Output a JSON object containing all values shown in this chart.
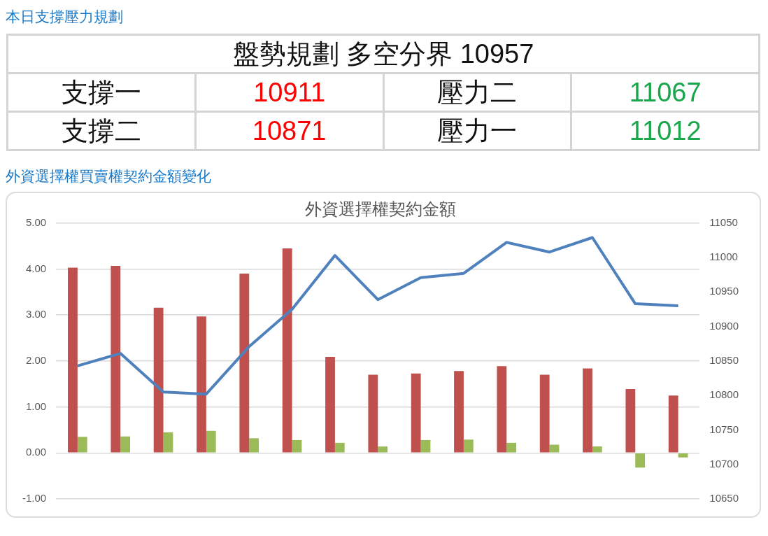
{
  "chart_data": [
    {
      "type": "other",
      "title": "本日支撐壓力規劃",
      "annotations": [
        "盤勢規劃 多空分界 10957",
        "支撐一",
        "10911",
        "壓力二",
        "11067",
        "支撐二",
        "10871",
        "壓力一",
        "11012"
      ]
    },
    {
      "type": "bar",
      "title": "外資選擇權契約金額",
      "subtitle": "外資選擇權買賣權契約金額變化",
      "categories": [
        null,
        null,
        null,
        null,
        null,
        null,
        null,
        null,
        null,
        null,
        null,
        null,
        null,
        null,
        null
      ],
      "series": [
        {
          "color": "#c0504d",
          "values": [
            4.03,
            4.07,
            3.16,
            2.97,
            3.9,
            4.45,
            2.09,
            1.7,
            1.73,
            1.78,
            1.89,
            1.7,
            1.84,
            1.39,
            1.25
          ]
        },
        {
          "color": "#9bbb59",
          "values": [
            0.35,
            0.36,
            0.45,
            0.48,
            0.32,
            0.28,
            0.22,
            0.14,
            0.28,
            0.29,
            0.22,
            0.18,
            0.14,
            -0.32,
            -0.1
          ]
        },
        {
          "type": "line",
          "axis": "y2",
          "color": "#4f81bd",
          "values": [
            10843,
            10861,
            10805,
            10802,
            10871,
            10925,
            11003,
            10939,
            10971,
            10977,
            11022,
            11008,
            11029,
            10933,
            10930
          ]
        }
      ],
      "ylim": [
        -1,
        5
      ],
      "yticks": [
        {
          "value": -1,
          "label": "-1.00"
        },
        {
          "value": 0,
          "label": "0.00"
        },
        {
          "value": 1,
          "label": "1.00"
        },
        {
          "value": 2,
          "label": "2.00"
        },
        {
          "value": 3,
          "label": "3.00"
        },
        {
          "value": 4,
          "label": "4.00"
        },
        {
          "value": 5,
          "label": "5.00"
        }
      ],
      "y2lim": [
        10650,
        11050
      ],
      "y2ticks": [
        10650,
        10700,
        10750,
        10800,
        10850,
        10900,
        10950,
        11000,
        11050
      ],
      "grid": "y",
      "legend": false,
      "marker": "none"
    }
  ]
}
